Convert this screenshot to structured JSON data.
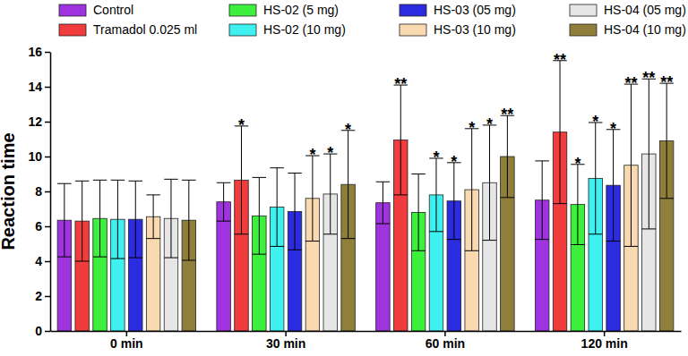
{
  "chart_data": {
    "type": "bar",
    "y_label": "Reaction time",
    "categories": [
      "0 min",
      "30 min",
      "60 min",
      "120 min"
    ],
    "ylim": [
      0,
      16
    ],
    "yticks": [
      0,
      2,
      4,
      6,
      8,
      10,
      12,
      14,
      16
    ],
    "legend": "top",
    "series": [
      {
        "name": "Control",
        "color": "#a033e0",
        "values": [
          6.35,
          7.4,
          7.35,
          7.5
        ],
        "errors": [
          2.1,
          1.1,
          1.2,
          2.25
        ],
        "significance": [
          null,
          null,
          null,
          null
        ]
      },
      {
        "name": "Tramadol 0.025 ml",
        "color": "#f03c3c",
        "values": [
          6.3,
          8.65,
          10.95,
          11.4
        ],
        "errors": [
          2.3,
          3.1,
          3.15,
          4.1
        ],
        "significance": [
          null,
          "*",
          "**",
          "**"
        ]
      },
      {
        "name": "HS-02 (5 mg)",
        "color": "#3ef03e",
        "values": [
          6.45,
          6.6,
          6.8,
          7.25
        ],
        "errors": [
          2.2,
          2.2,
          2.2,
          2.3
        ],
        "significance": [
          null,
          null,
          null,
          "*"
        ]
      },
      {
        "name": "HS-02 (10 mg)",
        "color": "#3ef0f0",
        "values": [
          6.4,
          7.1,
          7.8,
          8.75
        ],
        "errors": [
          2.25,
          2.25,
          2.1,
          3.2
        ],
        "significance": [
          null,
          null,
          "*",
          "*"
        ]
      },
      {
        "name": "HS-03 (05 mg)",
        "color": "#2b2be0",
        "values": [
          6.4,
          6.85,
          7.45,
          8.35
        ],
        "errors": [
          2.2,
          2.2,
          2.2,
          3.2
        ],
        "significance": [
          null,
          null,
          "*",
          "*"
        ]
      },
      {
        "name": "HS-03 (10 mg)",
        "color": "#f8d9b0",
        "values": [
          6.55,
          7.6,
          8.1,
          9.5
        ],
        "errors": [
          1.25,
          2.45,
          3.5,
          4.65
        ],
        "significance": [
          null,
          "*",
          "*",
          "**"
        ]
      },
      {
        "name": "HS-04 (05 mg)",
        "color": "#e6e6e6",
        "values": [
          6.45,
          7.85,
          8.5,
          10.15
        ],
        "errors": [
          2.25,
          2.3,
          3.3,
          4.3
        ],
        "significance": [
          null,
          "*",
          "*",
          "**"
        ]
      },
      {
        "name": "HS-04 (10 mg)",
        "color": "#8f7f3a",
        "values": [
          6.35,
          8.4,
          10.0,
          10.9
        ],
        "errors": [
          2.3,
          3.1,
          2.35,
          3.3
        ],
        "significance": [
          null,
          "*",
          "**",
          "**"
        ]
      }
    ]
  }
}
